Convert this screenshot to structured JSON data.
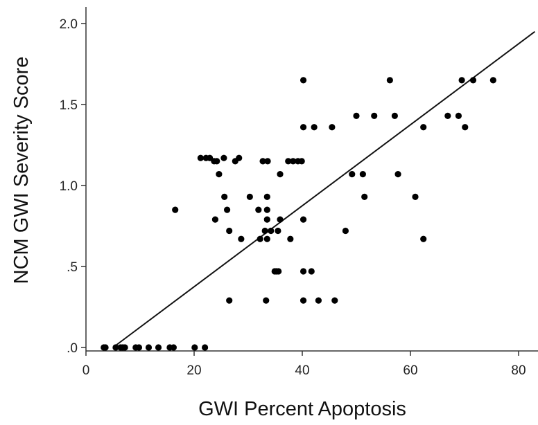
{
  "chart_data": {
    "type": "scatter",
    "xlabel": "GWI Percent Apoptosis",
    "ylabel": "NCM GWI Severity Score",
    "xlim": [
      0,
      83
    ],
    "ylim": [
      0,
      2.1
    ],
    "x_ticks": [
      {
        "value": 0,
        "label": "0"
      },
      {
        "value": 20,
        "label": "20"
      },
      {
        "value": 40,
        "label": "40"
      },
      {
        "value": 60,
        "label": "60"
      },
      {
        "value": 80,
        "label": "80"
      }
    ],
    "y_ticks": [
      {
        "value": 0,
        "label": ".0"
      },
      {
        "value": 0.5,
        "label": ".5"
      },
      {
        "value": 1.0,
        "label": "1.0"
      },
      {
        "value": 1.5,
        "label": "1.5"
      },
      {
        "value": 2.0,
        "label": "2.0"
      }
    ],
    "grid": false,
    "points": [
      {
        "x": 3.3,
        "y": 0
      },
      {
        "x": 3.6,
        "y": 0
      },
      {
        "x": 5.5,
        "y": 0
      },
      {
        "x": 6.4,
        "y": 0
      },
      {
        "x": 6.8,
        "y": 0
      },
      {
        "x": 7.2,
        "y": 0
      },
      {
        "x": 9.2,
        "y": 0
      },
      {
        "x": 9.8,
        "y": 0
      },
      {
        "x": 11.6,
        "y": 0
      },
      {
        "x": 13.4,
        "y": 0
      },
      {
        "x": 15.5,
        "y": 0
      },
      {
        "x": 16.2,
        "y": 0
      },
      {
        "x": 20.1,
        "y": 0
      },
      {
        "x": 22.0,
        "y": 0
      },
      {
        "x": 16.5,
        "y": 0.85
      },
      {
        "x": 21.2,
        "y": 1.17
      },
      {
        "x": 22.2,
        "y": 1.17
      },
      {
        "x": 22.9,
        "y": 1.17
      },
      {
        "x": 23.7,
        "y": 1.15
      },
      {
        "x": 24.2,
        "y": 1.15
      },
      {
        "x": 25.5,
        "y": 1.17
      },
      {
        "x": 24.6,
        "y": 1.07
      },
      {
        "x": 27.6,
        "y": 1.15
      },
      {
        "x": 28.3,
        "y": 1.17
      },
      {
        "x": 25.6,
        "y": 0.93
      },
      {
        "x": 26.1,
        "y": 0.85
      },
      {
        "x": 23.9,
        "y": 0.79
      },
      {
        "x": 26.5,
        "y": 0.72
      },
      {
        "x": 28.7,
        "y": 0.67
      },
      {
        "x": 26.5,
        "y": 0.29
      },
      {
        "x": 30.3,
        "y": 0.93
      },
      {
        "x": 31.9,
        "y": 0.85
      },
      {
        "x": 32.2,
        "y": 0.67
      },
      {
        "x": 32.7,
        "y": 1.15
      },
      {
        "x": 33.6,
        "y": 1.15
      },
      {
        "x": 33.1,
        "y": 0.72
      },
      {
        "x": 33.5,
        "y": 0.93
      },
      {
        "x": 33.5,
        "y": 0.85
      },
      {
        "x": 33.5,
        "y": 0.79
      },
      {
        "x": 33.5,
        "y": 0.67
      },
      {
        "x": 34.2,
        "y": 0.72
      },
      {
        "x": 35.5,
        "y": 0.72
      },
      {
        "x": 35.9,
        "y": 0.79
      },
      {
        "x": 35.9,
        "y": 1.07
      },
      {
        "x": 34.9,
        "y": 0.47
      },
      {
        "x": 35.2,
        "y": 0.47
      },
      {
        "x": 35.6,
        "y": 0.47
      },
      {
        "x": 33.3,
        "y": 0.29
      },
      {
        "x": 37.4,
        "y": 1.15
      },
      {
        "x": 38.3,
        "y": 1.15
      },
      {
        "x": 39.2,
        "y": 1.15
      },
      {
        "x": 39.9,
        "y": 1.15
      },
      {
        "x": 37.8,
        "y": 0.67
      },
      {
        "x": 40.2,
        "y": 1.65
      },
      {
        "x": 40.2,
        "y": 1.36
      },
      {
        "x": 40.2,
        "y": 0.79
      },
      {
        "x": 40.2,
        "y": 0.47
      },
      {
        "x": 40.2,
        "y": 0.29
      },
      {
        "x": 41.7,
        "y": 0.47
      },
      {
        "x": 42.2,
        "y": 1.36
      },
      {
        "x": 43.0,
        "y": 0.29
      },
      {
        "x": 45.5,
        "y": 1.36
      },
      {
        "x": 46.0,
        "y": 0.29
      },
      {
        "x": 48.0,
        "y": 0.72
      },
      {
        "x": 49.2,
        "y": 1.07
      },
      {
        "x": 50.0,
        "y": 1.43
      },
      {
        "x": 51.2,
        "y": 1.07
      },
      {
        "x": 51.5,
        "y": 0.93
      },
      {
        "x": 53.3,
        "y": 1.43
      },
      {
        "x": 56.2,
        "y": 1.65
      },
      {
        "x": 57.1,
        "y": 1.43
      },
      {
        "x": 57.7,
        "y": 1.07
      },
      {
        "x": 60.9,
        "y": 0.93
      },
      {
        "x": 62.4,
        "y": 1.36
      },
      {
        "x": 62.4,
        "y": 0.67
      },
      {
        "x": 66.9,
        "y": 1.43
      },
      {
        "x": 68.9,
        "y": 1.43
      },
      {
        "x": 69.5,
        "y": 1.65
      },
      {
        "x": 70.1,
        "y": 1.36
      },
      {
        "x": 71.6,
        "y": 1.65
      },
      {
        "x": 75.3,
        "y": 1.65
      }
    ],
    "fit_line": {
      "x": [
        5.0,
        83.0
      ],
      "y": [
        0.0,
        1.95
      ]
    }
  }
}
